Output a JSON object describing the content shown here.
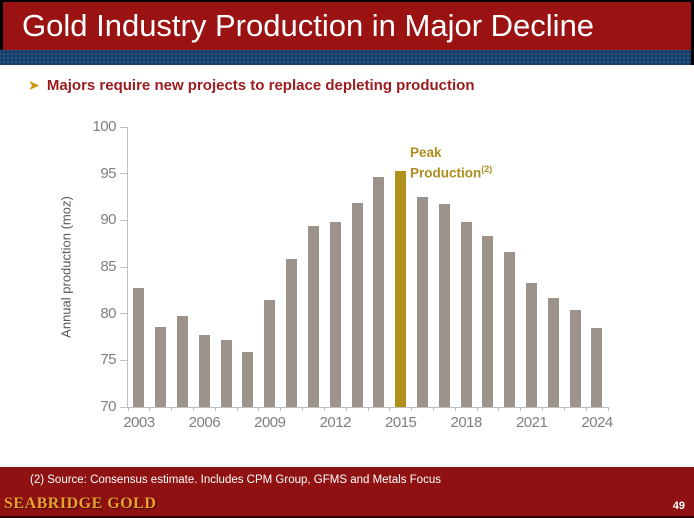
{
  "slide": {
    "title": "Gold Industry Production in Major Decline",
    "bullet": "Majors require new projects to replace depleting production",
    "bullet_icon": "arrow-bullet",
    "footnote": "(2) Source: Consensus estimate. Includes CPM Group, GFMS and Metals Focus",
    "brand": "SEABRIDGE GOLD",
    "page_number": "49"
  },
  "colors": {
    "header_red": "#9A1212",
    "footer_red": "#8F1111",
    "stripe_blue": "#1F4B79",
    "bar_grey": "#9C948C",
    "bar_gold": "#B2901C",
    "gold_text": "#AD8D1D",
    "bullet_red": "#9B1B1E",
    "brand_gold": "#E8A02F",
    "axis_grey": "#7F7F7F"
  },
  "chart_data": {
    "type": "bar",
    "title": "",
    "xlabel": "",
    "ylabel": "Annual production (moz)",
    "ylim": [
      70,
      100
    ],
    "ytick_step": 5,
    "x_label_every": 3,
    "grid": false,
    "categories": [
      2003,
      2004,
      2005,
      2006,
      2007,
      2008,
      2009,
      2010,
      2011,
      2012,
      2013,
      2014,
      2015,
      2016,
      2017,
      2018,
      2019,
      2020,
      2021,
      2022,
      2023,
      2024
    ],
    "values": [
      82.7,
      78.6,
      79.8,
      77.7,
      77.2,
      75.9,
      81.5,
      85.9,
      89.4,
      89.8,
      91.9,
      94.6,
      95.3,
      92.5,
      91.8,
      89.8,
      88.3,
      86.6,
      83.3,
      81.7,
      80.4,
      78.5
    ],
    "highlight_index": 12,
    "annotation": {
      "line1": "Peak",
      "line2": "Production",
      "superscript": "(2)",
      "target_year": 2015
    }
  }
}
